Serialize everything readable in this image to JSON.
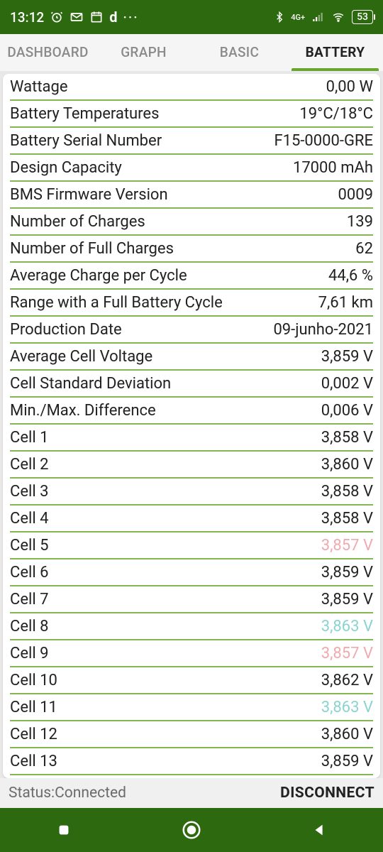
{
  "statusbar": {
    "time": "13:12",
    "net_label": "4G+",
    "battery_pct": "53"
  },
  "tabs": [
    {
      "label": "DASHBOARD",
      "active": false
    },
    {
      "label": "GRAPH",
      "active": false
    },
    {
      "label": "BASIC",
      "active": false
    },
    {
      "label": "BATTERY",
      "active": true
    }
  ],
  "rows": [
    {
      "label": "Wattage",
      "value": "0,00 W"
    },
    {
      "label": "Battery Temperatures",
      "value": "19°C/18°C"
    },
    {
      "label": "Battery Serial Number",
      "value": "F15-0000-GRE"
    },
    {
      "label": "Design Capacity",
      "value": "17000 mAh"
    },
    {
      "label": "BMS Firmware Version",
      "value": "0009"
    },
    {
      "label": "Number of Charges",
      "value": "139"
    },
    {
      "label": "Number of Full Charges",
      "value": "62"
    },
    {
      "label": "Average Charge per Cycle",
      "value": "44,6 %"
    },
    {
      "label": "Range with a Full Battery Cycle",
      "value": "7,61 km"
    },
    {
      "label": "Production Date",
      "value": "09-junho-2021"
    },
    {
      "label": "Average Cell Voltage",
      "value": "3,859 V"
    },
    {
      "label": "Cell Standard Deviation",
      "value": "0,002 V"
    },
    {
      "label": "Min./Max. Difference",
      "value": "0,006 V"
    },
    {
      "label": "Cell 1",
      "value": "3,858 V"
    },
    {
      "label": "Cell 2",
      "value": "3,860 V"
    },
    {
      "label": "Cell 3",
      "value": "3,858 V"
    },
    {
      "label": "Cell 4",
      "value": "3,858 V"
    },
    {
      "label": "Cell 5",
      "value": "3,857 V",
      "color": "pink"
    },
    {
      "label": "Cell 6",
      "value": "3,859 V"
    },
    {
      "label": "Cell 7",
      "value": "3,859 V"
    },
    {
      "label": "Cell 8",
      "value": "3,863 V",
      "color": "teal"
    },
    {
      "label": "Cell 9",
      "value": "3,857 V",
      "color": "pink"
    },
    {
      "label": "Cell 10",
      "value": "3,862 V"
    },
    {
      "label": "Cell 11",
      "value": "3,863 V",
      "color": "teal"
    },
    {
      "label": "Cell 12",
      "value": "3,860 V"
    },
    {
      "label": "Cell 13",
      "value": "3,859 V"
    }
  ],
  "footer": {
    "status": "Status:Connected",
    "disconnect": "DISCONNECT"
  },
  "colors": {
    "accent": "#2d6a0f",
    "divider": "#84b651",
    "pink": "#f1a9b0",
    "teal": "#89d4d0"
  }
}
